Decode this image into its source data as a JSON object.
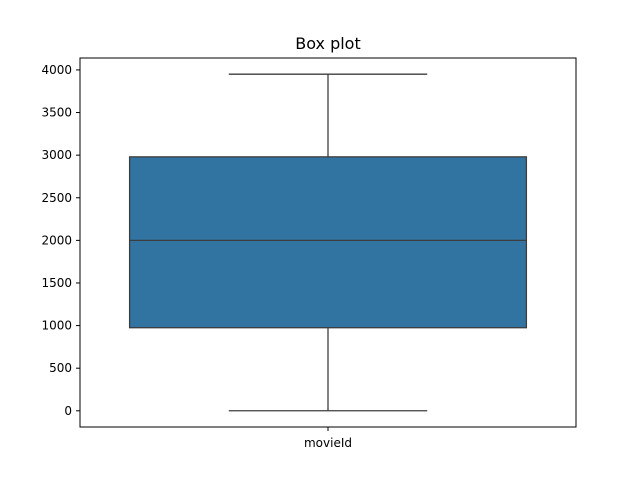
{
  "chart_data": {
    "type": "box",
    "title": "Box plot",
    "xlabel": "",
    "ylabel": "",
    "categories": [
      "movieId"
    ],
    "boxes": [
      {
        "category": "movieId",
        "min": 1,
        "q1": 975,
        "median": 2000,
        "q3": 2980,
        "max": 3950
      }
    ],
    "ylim": [
      -190,
      4140
    ],
    "yticks": [
      0,
      500,
      1000,
      1500,
      2000,
      2500,
      3000,
      3500,
      4000
    ],
    "ytick_labels": [
      "0",
      "500",
      "1000",
      "1500",
      "2000",
      "2500",
      "3000",
      "3500",
      "4000"
    ],
    "grid": false,
    "box_color": "#3274a1",
    "line_color": "#3d3d3d"
  }
}
